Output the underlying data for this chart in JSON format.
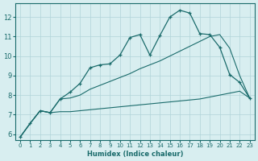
{
  "xlabel": "Humidex (Indice chaleur)",
  "bg_color": "#d8eef0",
  "grid_color": "#b0d4d8",
  "line_color": "#1a6b6b",
  "xlim": [
    -0.5,
    23.5
  ],
  "ylim": [
    5.7,
    12.7
  ],
  "xticks": [
    0,
    1,
    2,
    3,
    4,
    5,
    6,
    7,
    8,
    9,
    10,
    11,
    12,
    13,
    14,
    15,
    16,
    17,
    18,
    19,
    20,
    21,
    22,
    23
  ],
  "yticks": [
    6,
    7,
    8,
    9,
    10,
    11,
    12
  ],
  "line1_x": [
    0,
    1,
    2,
    3,
    4,
    5,
    6,
    7,
    8,
    9,
    10,
    11,
    12,
    13,
    14,
    15,
    16,
    17,
    18,
    19,
    20,
    21,
    22,
    23
  ],
  "line1_y": [
    5.85,
    6.55,
    7.2,
    7.1,
    7.8,
    8.15,
    8.6,
    9.4,
    9.55,
    9.6,
    10.05,
    10.95,
    11.1,
    10.05,
    11.05,
    12.0,
    12.35,
    12.2,
    11.15,
    11.1,
    10.45,
    9.05,
    8.65,
    7.85
  ],
  "line2_x": [
    0,
    1,
    2,
    3,
    4,
    5,
    6,
    7,
    8,
    9,
    10,
    11,
    12,
    13,
    14,
    15,
    16,
    17,
    18,
    19,
    20,
    21,
    22,
    23
  ],
  "line2_y": [
    5.85,
    6.55,
    7.2,
    7.1,
    7.8,
    7.85,
    8.0,
    8.3,
    8.5,
    8.7,
    8.9,
    9.1,
    9.35,
    9.55,
    9.75,
    10.0,
    10.25,
    10.5,
    10.75,
    11.0,
    11.1,
    10.4,
    9.0,
    7.85
  ],
  "line3_x": [
    0,
    1,
    2,
    3,
    4,
    5,
    6,
    7,
    8,
    9,
    10,
    11,
    12,
    13,
    14,
    15,
    16,
    17,
    18,
    19,
    20,
    21,
    22,
    23
  ],
  "line3_y": [
    5.85,
    6.55,
    7.2,
    7.1,
    7.15,
    7.15,
    7.2,
    7.25,
    7.3,
    7.35,
    7.4,
    7.45,
    7.5,
    7.55,
    7.6,
    7.65,
    7.7,
    7.75,
    7.8,
    7.9,
    8.0,
    8.1,
    8.2,
    7.85
  ]
}
